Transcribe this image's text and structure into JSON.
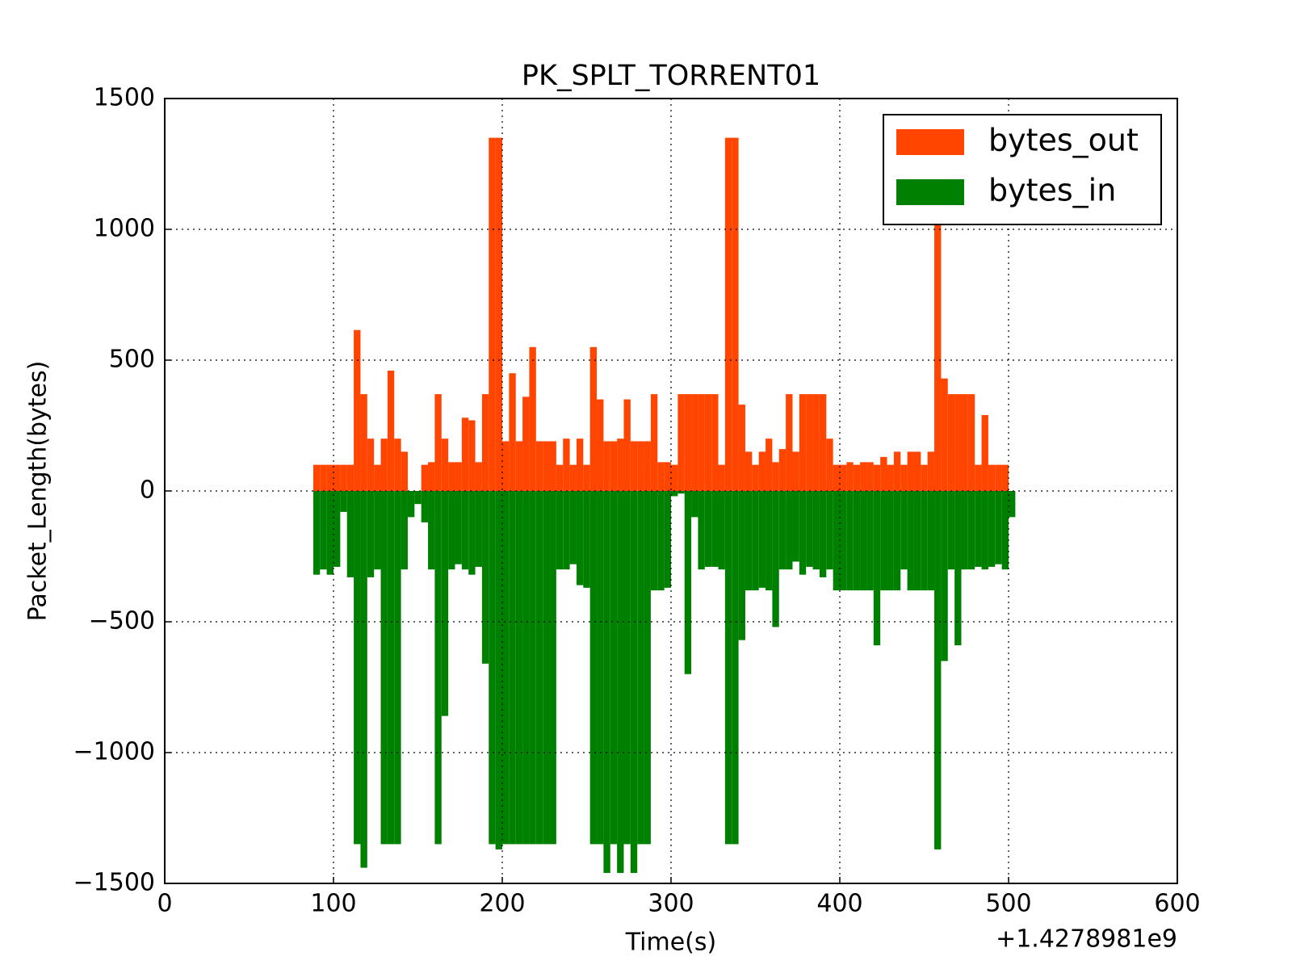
{
  "chart_data": {
    "type": "bar",
    "title": "PK_SPLT_TORRENT01",
    "x_label": "Time(s)",
    "y_label": "Packet_Length(bytes)",
    "x_offset_label": "+1.4278981e9",
    "x": [
      88,
      92,
      96,
      100,
      104,
      108,
      112,
      116,
      120,
      124,
      128,
      132,
      136,
      140,
      144,
      148,
      152,
      156,
      160,
      164,
      168,
      172,
      176,
      180,
      184,
      188,
      192,
      196,
      200,
      204,
      208,
      212,
      216,
      220,
      224,
      228,
      232,
      236,
      240,
      244,
      248,
      252,
      256,
      260,
      264,
      268,
      272,
      276,
      280,
      284,
      288,
      292,
      296,
      300,
      304,
      308,
      312,
      316,
      320,
      324,
      328,
      332,
      336,
      340,
      344,
      348,
      352,
      356,
      360,
      364,
      368,
      372,
      376,
      380,
      384,
      388,
      392,
      396,
      400,
      404,
      408,
      412,
      416,
      420,
      424,
      428,
      432,
      436,
      440,
      444,
      448,
      452,
      456,
      460,
      464,
      468,
      472,
      476,
      480,
      484,
      488,
      492,
      496,
      500
    ],
    "series": [
      {
        "name": "bytes_out",
        "color": "#ff4500",
        "values": [
          100,
          100,
          100,
          100,
          100,
          100,
          615,
          370,
          200,
          100,
          200,
          460,
          200,
          150,
          0,
          0,
          100,
          110,
          370,
          200,
          110,
          110,
          280,
          270,
          110,
          370,
          1350,
          1350,
          190,
          450,
          190,
          360,
          550,
          190,
          190,
          190,
          100,
          200,
          100,
          200,
          100,
          550,
          350,
          190,
          190,
          200,
          350,
          190,
          190,
          190,
          370,
          110,
          110,
          100,
          370,
          370,
          370,
          370,
          370,
          370,
          100,
          1350,
          1350,
          330,
          150,
          100,
          150,
          200,
          110,
          160,
          370,
          150,
          370,
          370,
          370,
          370,
          200,
          100,
          100,
          110,
          100,
          110,
          110,
          100,
          130,
          100,
          150,
          100,
          150,
          150,
          100,
          150,
          1040,
          430,
          370,
          370,
          370,
          370,
          100,
          290,
          100,
          100,
          100,
          0
        ]
      },
      {
        "name": "bytes_in",
        "color": "#008000",
        "values": [
          -320,
          -300,
          -320,
          -290,
          -80,
          -330,
          -1350,
          -1440,
          -330,
          -300,
          -1350,
          -1350,
          -1350,
          -300,
          -100,
          -50,
          -120,
          -300,
          -1350,
          -860,
          -300,
          -280,
          -300,
          -320,
          -290,
          -660,
          -1350,
          -1370,
          -1350,
          -1350,
          -1350,
          -1350,
          -1350,
          -1350,
          -1350,
          -1350,
          -300,
          -300,
          -280,
          -360,
          -370,
          -1350,
          -1350,
          -1460,
          -1350,
          -1460,
          -1350,
          -1460,
          -1350,
          -1350,
          -380,
          -380,
          -370,
          -20,
          -10,
          -700,
          -100,
          -300,
          -290,
          -290,
          -300,
          -1350,
          -1350,
          -570,
          -380,
          -380,
          -370,
          -380,
          -520,
          -300,
          -300,
          -270,
          -320,
          -290,
          -300,
          -330,
          -300,
          -380,
          -380,
          -380,
          -380,
          -380,
          -380,
          -590,
          -380,
          -380,
          -380,
          -300,
          -380,
          -380,
          -380,
          -380,
          -1370,
          -650,
          -300,
          -590,
          -300,
          -300,
          -290,
          -300,
          -290,
          -280,
          -300,
          -100
        ]
      }
    ],
    "xlim": [
      0,
      600
    ],
    "xticks": [
      0,
      100,
      200,
      300,
      400,
      500,
      600
    ],
    "ylim": [
      -1500,
      1500
    ],
    "yticks": [
      {
        "value": -1500,
        "label": "−1500"
      },
      {
        "value": -1000,
        "label": "−1000"
      },
      {
        "value": -500,
        "label": "−500"
      },
      0,
      500,
      1000,
      1500
    ],
    "grid": true,
    "legend": "upper right"
  }
}
